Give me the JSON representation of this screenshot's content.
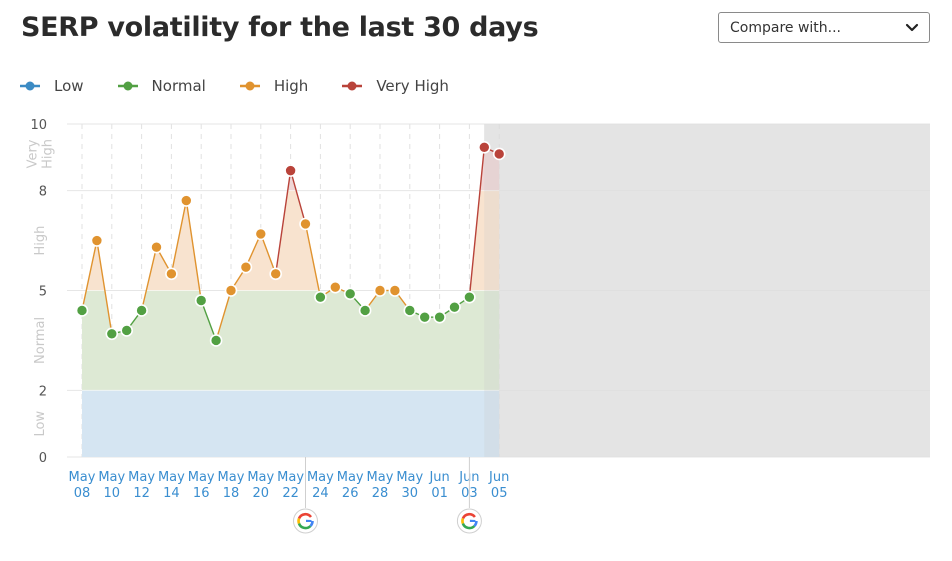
{
  "header": {
    "title": "SERP volatility for the last 30 days",
    "compare_label": "Compare with..."
  },
  "legend": [
    {
      "label": "Low",
      "color": "#3b8bc4"
    },
    {
      "label": "Normal",
      "color": "#52a043"
    },
    {
      "label": "High",
      "color": "#e0932f"
    },
    {
      "label": "Very High",
      "color": "#b9433a"
    }
  ],
  "chart_data": {
    "type": "area",
    "ylim": [
      0,
      10
    ],
    "yticks": [
      "0",
      "2",
      "5",
      "8",
      "10"
    ],
    "bands": [
      {
        "label": "Low",
        "from": 0,
        "to": 2,
        "color": "#d5e5f2"
      },
      {
        "label": "Normal",
        "from": 2,
        "to": 5,
        "color": "#dde9d4"
      },
      {
        "label": "High",
        "from": 5,
        "to": 8,
        "color": "#f8e3cf"
      },
      {
        "label": "Very High",
        "from": 8,
        "to": 10,
        "color": "#efd6d6"
      }
    ],
    "band_labels": [
      "Low",
      "Normal",
      "High",
      "Very\nHigh"
    ],
    "x_labels": [
      {
        "top": "May",
        "bottom": "08"
      },
      {
        "top": "May",
        "bottom": "10"
      },
      {
        "top": "May",
        "bottom": "12"
      },
      {
        "top": "May",
        "bottom": "14"
      },
      {
        "top": "May",
        "bottom": "16"
      },
      {
        "top": "May",
        "bottom": "18"
      },
      {
        "top": "May",
        "bottom": "20"
      },
      {
        "top": "May",
        "bottom": "22"
      },
      {
        "top": "May",
        "bottom": "24"
      },
      {
        "top": "May",
        "bottom": "26"
      },
      {
        "top": "May",
        "bottom": "28"
      },
      {
        "top": "May",
        "bottom": "30"
      },
      {
        "top": "Jun",
        "bottom": "01"
      },
      {
        "top": "Jun",
        "bottom": "03"
      },
      {
        "top": "Jun",
        "bottom": "05"
      }
    ],
    "dates": [
      "May 08",
      "May 09",
      "May 10",
      "May 11",
      "May 12",
      "May 13",
      "May 14",
      "May 15",
      "May 16",
      "May 17",
      "May 18",
      "May 19",
      "May 20",
      "May 21",
      "May 22",
      "May 23",
      "May 24",
      "May 25",
      "May 26",
      "May 27",
      "May 28",
      "May 29",
      "May 30",
      "May 31",
      "Jun 01",
      "Jun 02",
      "Jun 03",
      "Jun 04",
      "Jun 05"
    ],
    "values": [
      4.4,
      6.5,
      3.7,
      3.8,
      4.4,
      6.3,
      5.5,
      7.7,
      4.7,
      3.5,
      5.0,
      5.7,
      6.7,
      5.5,
      8.6,
      7.0,
      4.8,
      5.1,
      4.9,
      4.4,
      5.0,
      5.0,
      4.4,
      4.2,
      4.2,
      4.5,
      4.8,
      9.3,
      9.1
    ],
    "google_update_markers": [
      "May 23",
      "Jun 03"
    ],
    "highlighted": "Jun 05",
    "grid": true
  }
}
